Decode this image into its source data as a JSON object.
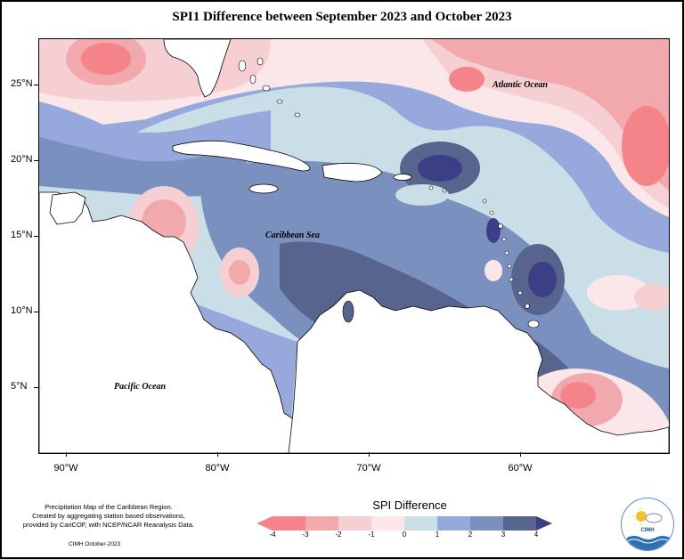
{
  "title": "SPI1 Difference between September 2023 and October 2023",
  "axes": {
    "lat_labels": [
      "25°N",
      "20°N",
      "15°N",
      "10°N",
      "5°N"
    ],
    "lon_labels": [
      "90°W",
      "80°W",
      "70°W",
      "60°W"
    ]
  },
  "ocean_labels": {
    "atlantic": "Atlantic Ocean",
    "caribbean": "Caribbean Sea",
    "pacific": "Pacific Ocean"
  },
  "footer": {
    "line1": "Precipitation Map of the Caribbean Region.",
    "line2": "Created by aggregating station based observations,",
    "line3": "provided by CariCOF, with NCEP/NCAR Reanalysis Data.",
    "credit": "CIMH October-2023"
  },
  "legend": {
    "title": "SPI Difference",
    "tick_labels": [
      "-4",
      "-3",
      "-2",
      "-1",
      "0",
      "1",
      "2",
      "3",
      "4"
    ],
    "colors": [
      "#f4848a",
      "#f1a9ad",
      "#f6cfd2",
      "#fbe7ea",
      "#c9dee6",
      "#97a9dc",
      "#7a91bf",
      "#57648d"
    ],
    "end_colors": [
      "#f4848a",
      "#3c3f86"
    ]
  },
  "logo": {
    "text": "CIMH",
    "icon": "cimh-logo-icon"
  }
}
